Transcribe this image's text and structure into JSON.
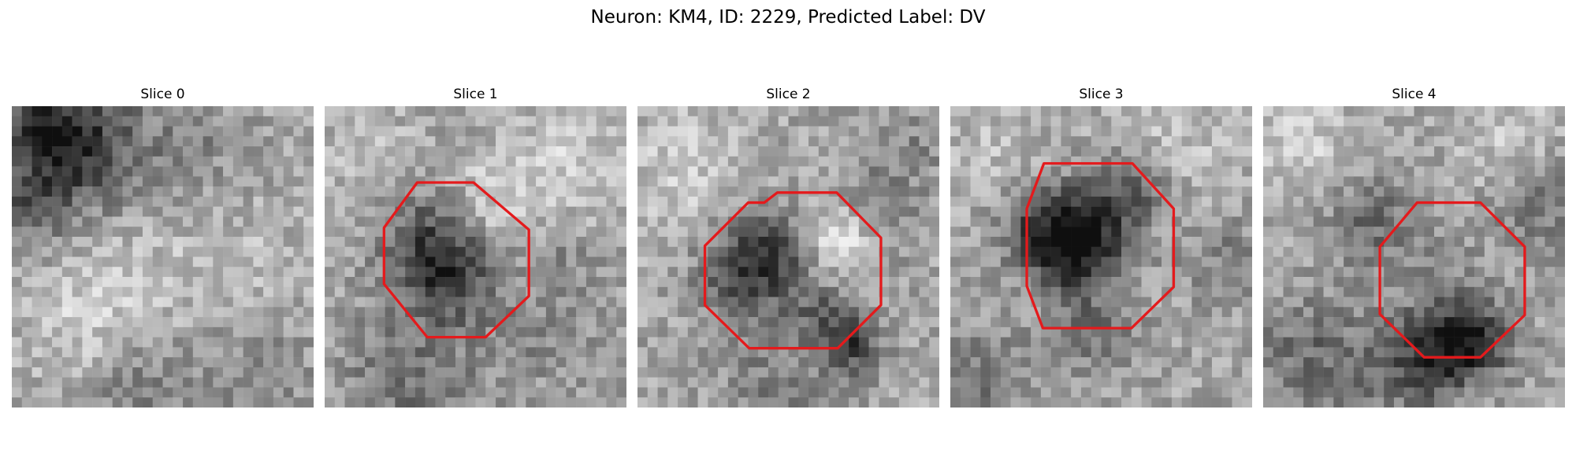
{
  "title": "Neuron: KM4, ID: 2229, Predicted Label: DV",
  "outline_color": "#e41a1c",
  "panels": [
    {
      "label": "Slice 0",
      "has_outline": false,
      "seed": 11
    },
    {
      "label": "Slice 1",
      "has_outline": true,
      "seed": 23
    },
    {
      "label": "Slice 2",
      "has_outline": true,
      "seed": 37
    },
    {
      "label": "Slice 3",
      "has_outline": true,
      "seed": 51
    },
    {
      "label": "Slice 4",
      "has_outline": true,
      "seed": 67
    }
  ]
}
